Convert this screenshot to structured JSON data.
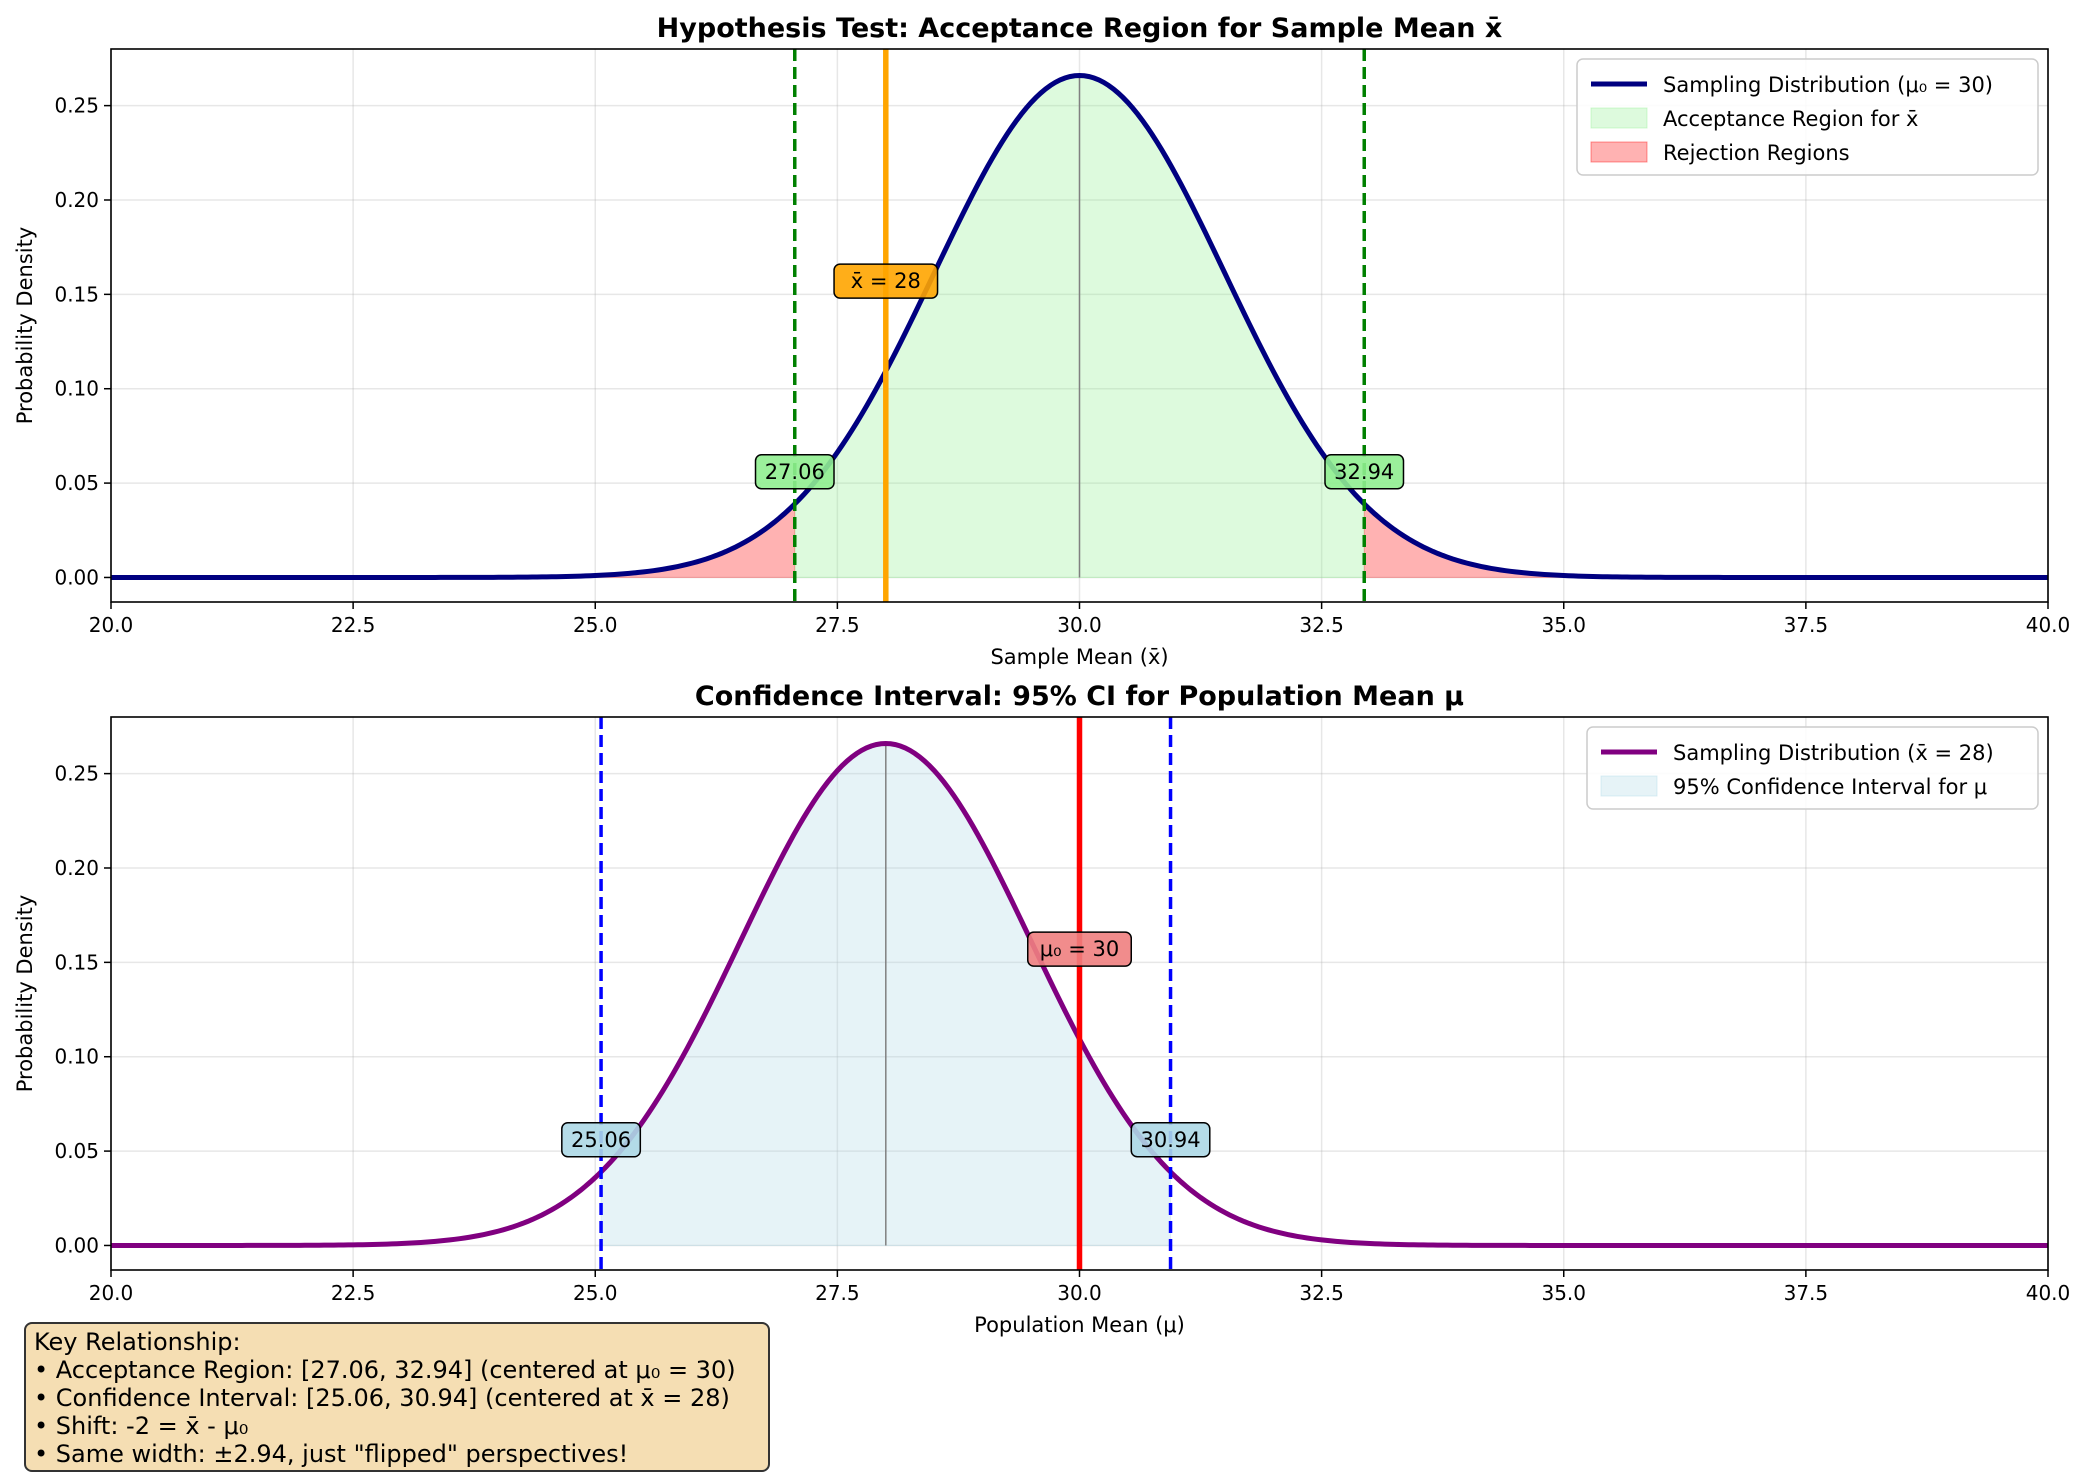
{
  "chart_data": [
    {
      "type": "area",
      "title": "Hypothesis Test: Acceptance Region for Sample Mean x̄",
      "xlabel": "Sample Mean (x̄)",
      "ylabel": "Probability Density",
      "xlim": [
        20,
        40
      ],
      "ylim": [
        -0.013,
        0.28
      ],
      "grid": true,
      "legend_position": "top-right",
      "xticks": [
        "20.0",
        "22.5",
        "25.0",
        "27.5",
        "30.0",
        "32.5",
        "35.0",
        "37.5",
        "40.0"
      ],
      "yticks": [
        "0.00",
        "0.05",
        "0.10",
        "0.15",
        "0.20",
        "0.25"
      ],
      "distribution": {
        "mean": 30,
        "sd": 1.5
      },
      "interval": [
        27.06,
        32.94
      ],
      "center_line": 30,
      "marker_line": 28,
      "series": [
        {
          "name": "Sampling Distribution (μ₀ = 30)",
          "role": "curve",
          "color": "#000080"
        },
        {
          "name": "Acceptance Region for x̄",
          "role": "fill-inside",
          "color": "#90ee90"
        },
        {
          "name": "Rejection Regions",
          "role": "fill-tails",
          "color": "#ff0000"
        }
      ],
      "annotations": [
        {
          "text": "x̄ = 28",
          "x": 28,
          "y": 0.157,
          "bg": "#ffa500"
        },
        {
          "text": "27.06",
          "x": 27.06,
          "y": 0.056,
          "bg": "#90ee90"
        },
        {
          "text": "32.94",
          "x": 32.94,
          "y": 0.056,
          "bg": "#90ee90"
        }
      ],
      "colors": {
        "curve": "#000080",
        "interval_line": "#008000",
        "marker_line": "#ffa500",
        "center_line": "#808080"
      }
    },
    {
      "type": "area",
      "title": "Confidence Interval: 95% CI for Population Mean μ",
      "xlabel": "Population Mean (μ)",
      "ylabel": "Probability Density",
      "xlim": [
        20,
        40
      ],
      "ylim": [
        -0.013,
        0.28
      ],
      "grid": true,
      "legend_position": "top-right",
      "xticks": [
        "20.0",
        "22.5",
        "25.0",
        "27.5",
        "30.0",
        "32.5",
        "35.0",
        "37.5",
        "40.0"
      ],
      "yticks": [
        "0.00",
        "0.05",
        "0.10",
        "0.15",
        "0.20",
        "0.25"
      ],
      "distribution": {
        "mean": 28,
        "sd": 1.5
      },
      "interval": [
        25.06,
        30.94
      ],
      "center_line": 28,
      "marker_line": 30,
      "series": [
        {
          "name": "Sampling Distribution (x̄ = 28)",
          "role": "curve",
          "color": "#800080"
        },
        {
          "name": "95% Confidence Interval for μ",
          "role": "fill-inside",
          "color": "#add8e6"
        }
      ],
      "annotations": [
        {
          "text": "μ₀ = 30",
          "x": 30,
          "y": 0.157,
          "bg": "#f08080"
        },
        {
          "text": "25.06",
          "x": 25.06,
          "y": 0.056,
          "bg": "#add8e6"
        },
        {
          "text": "30.94",
          "x": 30.94,
          "y": 0.056,
          "bg": "#add8e6"
        }
      ],
      "colors": {
        "curve": "#800080",
        "interval_line": "#0000ff",
        "marker_line": "#ff0000",
        "center_line": "#808080"
      }
    }
  ],
  "key_box": {
    "title": "Key Relationship:",
    "lines": [
      "• Acceptance Region: [27.06, 32.94] (centered at μ₀ = 30)",
      "• Confidence Interval: [25.06, 30.94] (centered at x̄ = 28)",
      "• Shift: -2 = x̄ - μ₀",
      "• Same width: ±2.94, just \"flipped\" perspectives!"
    ]
  }
}
